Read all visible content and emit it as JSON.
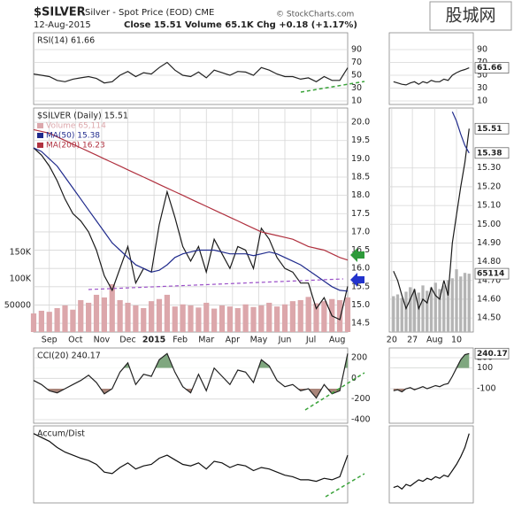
{
  "header": {
    "title": "$SILVER",
    "subtitle": "Silver - Spot Price (EOD)  CME",
    "date": "12-Aug-2015",
    "quote": "Close 15.51  Volume 65.1K  Chg +0.18 (+1.17%)",
    "source": "© StockCharts.com",
    "watermark": "股城网"
  },
  "chart_data": [
    {
      "type": "line",
      "title": "RSI(14) 61.66",
      "x": [
        -0.6,
        -0.3,
        0,
        0.3,
        0.6,
        0.9,
        1.2,
        1.5,
        1.8,
        2.1,
        2.4,
        2.7,
        3,
        3.3,
        3.6,
        3.9,
        4.2,
        4.5,
        4.8,
        5.1,
        5.4,
        5.7,
        6,
        6.3,
        6.6,
        6.9,
        7.2,
        7.5,
        7.8,
        8.1,
        8.4,
        8.7,
        9,
        9.3,
        9.6,
        9.9,
        10.2,
        10.5,
        10.8,
        11.1,
        11.4
      ],
      "xlim": [
        -0.6,
        11.4
      ],
      "series": [
        {
          "color": "#222222",
          "values": [
            52,
            50,
            48,
            42,
            40,
            44,
            46,
            48,
            45,
            38,
            40,
            50,
            56,
            48,
            54,
            52,
            62,
            70,
            58,
            50,
            48,
            55,
            46,
            58,
            54,
            50,
            56,
            55,
            50,
            62,
            58,
            52,
            48,
            48,
            44,
            46,
            40,
            48,
            42,
            42,
            61.66
          ]
        }
      ],
      "ylim": [
        4.5,
        116.2
      ],
      "yticks": [
        90,
        70,
        50,
        30,
        10
      ],
      "grid": true
    },
    {
      "type": "line",
      "title": "$SILVER (Daily) 15.51",
      "x": [
        -0.6,
        -0.3,
        0,
        0.3,
        0.6,
        0.9,
        1.2,
        1.5,
        1.8,
        2.1,
        2.4,
        2.7,
        3,
        3.3,
        3.6,
        3.9,
        4.2,
        4.5,
        4.8,
        5.1,
        5.4,
        5.7,
        6,
        6.3,
        6.6,
        6.9,
        7.2,
        7.5,
        7.8,
        8.1,
        8.4,
        8.7,
        9,
        9.3,
        9.6,
        9.9,
        10.2,
        10.5,
        10.8,
        11.1,
        11.4
      ],
      "xlim": [
        -0.6,
        11.4
      ],
      "xticks": [
        {
          "value": 0,
          "label": "Sep"
        },
        {
          "value": 1,
          "label": "Oct"
        },
        {
          "value": 2,
          "label": "Nov"
        },
        {
          "value": 3,
          "label": "Dec"
        },
        {
          "value": 4,
          "label": "2015"
        },
        {
          "value": 5,
          "label": "Feb"
        },
        {
          "value": 6,
          "label": "Mar"
        },
        {
          "value": 7,
          "label": "Apr"
        },
        {
          "value": 8,
          "label": "May"
        },
        {
          "value": 9,
          "label": "Jun"
        },
        {
          "value": 10,
          "label": "Jul"
        },
        {
          "value": 11,
          "label": "Aug"
        }
      ],
      "series": [
        {
          "type": "bar",
          "axis": "y2",
          "name": "Volume 65,114",
          "color": "#dca7ab",
          "values": [
            35000,
            40000,
            38000,
            45000,
            50000,
            42000,
            60000,
            55000,
            70000,
            65000,
            90000,
            60000,
            55000,
            50000,
            45000,
            58000,
            62000,
            70000,
            48000,
            52000,
            50000,
            46000,
            55000,
            44000,
            50000,
            48000,
            45000,
            52000,
            47000,
            50000,
            55000,
            48000,
            52000,
            58000,
            60000,
            66000,
            54000,
            58000,
            62000,
            60000,
            65114
          ]
        },
        {
          "color": "#1a1a1a",
          "values": [
            19.3,
            19.1,
            18.8,
            18.4,
            17.9,
            17.5,
            17.3,
            17.0,
            16.5,
            15.8,
            15.4,
            16.0,
            16.6,
            15.6,
            16.0,
            15.9,
            17.2,
            18.1,
            17.4,
            16.6,
            16.2,
            16.6,
            15.9,
            16.8,
            16.4,
            16.0,
            16.6,
            16.5,
            16.0,
            17.1,
            16.8,
            16.3,
            16.0,
            15.9,
            15.6,
            15.6,
            14.9,
            15.2,
            14.7,
            14.6,
            15.51
          ]
        },
        {
          "name": "MA(50) 15.38",
          "color": "#1f2a8c",
          "values": [
            19.3,
            19.2,
            19.0,
            18.8,
            18.5,
            18.2,
            17.9,
            17.6,
            17.3,
            17.0,
            16.7,
            16.5,
            16.3,
            16.1,
            16.0,
            15.9,
            15.95,
            16.1,
            16.3,
            16.4,
            16.45,
            16.5,
            16.5,
            16.5,
            16.45,
            16.4,
            16.4,
            16.4,
            16.35,
            16.4,
            16.45,
            16.4,
            16.3,
            16.2,
            16.1,
            15.95,
            15.8,
            15.65,
            15.5,
            15.4,
            15.38
          ]
        },
        {
          "name": "MA(200) 16.23",
          "color": "#b0313f",
          "values": [
            19.8,
            19.75,
            19.7,
            19.6,
            19.5,
            19.4,
            19.3,
            19.2,
            19.1,
            19.0,
            18.9,
            18.8,
            18.7,
            18.6,
            18.5,
            18.4,
            18.3,
            18.2,
            18.1,
            18.0,
            17.9,
            17.8,
            17.7,
            17.6,
            17.5,
            17.4,
            17.3,
            17.2,
            17.1,
            17.0,
            16.95,
            16.9,
            16.85,
            16.8,
            16.7,
            16.6,
            16.55,
            16.5,
            16.4,
            16.3,
            16.23
          ]
        }
      ],
      "ylim": [
        14.26,
        20.39
      ],
      "yticks": [
        {
          "value": 20,
          "label": "20.0"
        },
        19.5,
        {
          "value": 19,
          "label": "19.0"
        },
        18.5,
        {
          "value": 18,
          "label": "18.0"
        },
        17.5,
        {
          "value": 17,
          "label": "17.0"
        },
        16.5,
        {
          "value": 16,
          "label": "16.0"
        },
        15.5,
        {
          "value": 15,
          "label": "15.0"
        },
        14.5
      ],
      "y2lim": [
        0,
        421000
      ],
      "y2ticks": [
        {
          "value": 150000,
          "label": "150K"
        },
        {
          "value": 100000,
          "label": "100K"
        },
        50000
      ],
      "grid": true
    },
    {
      "type": "line",
      "title": "CCI(20) 240.17",
      "x": [
        -0.6,
        -0.3,
        0,
        0.3,
        0.6,
        0.9,
        1.2,
        1.5,
        1.8,
        2.1,
        2.4,
        2.7,
        3,
        3.3,
        3.6,
        3.9,
        4.2,
        4.5,
        4.8,
        5.1,
        5.4,
        5.7,
        6,
        6.3,
        6.6,
        6.9,
        7.2,
        7.5,
        7.8,
        8.1,
        8.4,
        8.7,
        9,
        9.3,
        9.6,
        9.9,
        10.2,
        10.5,
        10.8,
        11.1,
        11.4
      ],
      "xlim": [
        -0.6,
        11.4
      ],
      "series": [
        {
          "color": "#222222",
          "fill_above": {
            "level": 100,
            "color": "#7fa77f"
          },
          "fill_below": {
            "level": -100,
            "color": "#a9857a"
          },
          "values": [
            -20,
            -60,
            -120,
            -140,
            -100,
            -60,
            -20,
            30,
            -40,
            -150,
            -100,
            60,
            150,
            -60,
            40,
            20,
            180,
            240,
            60,
            -80,
            -140,
            40,
            -120,
            100,
            20,
            -60,
            80,
            60,
            -40,
            180,
            120,
            -20,
            -80,
            -60,
            -120,
            -100,
            -190,
            -60,
            -150,
            -120,
            240.17
          ]
        }
      ],
      "ylim": [
        -434,
        294
      ],
      "yticks": [
        200,
        0,
        -200,
        -400
      ],
      "grid": true
    },
    {
      "type": "line",
      "title": "Accum/Dist",
      "x": [
        -0.6,
        -0.3,
        0,
        0.3,
        0.6,
        0.9,
        1.2,
        1.5,
        1.8,
        2.1,
        2.4,
        2.7,
        3,
        3.3,
        3.6,
        3.9,
        4.2,
        4.5,
        4.8,
        5.1,
        5.4,
        5.7,
        6,
        6.3,
        6.6,
        6.9,
        7.2,
        7.5,
        7.8,
        8.1,
        8.4,
        8.7,
        9,
        9.3,
        9.6,
        9.9,
        10.2,
        10.5,
        10.8,
        11.1,
        11.4
      ],
      "xlim": [
        -0.6,
        11.4
      ],
      "series": [
        {
          "color": "#111111",
          "values": [
            90,
            85,
            80,
            72,
            66,
            62,
            58,
            55,
            50,
            40,
            38,
            46,
            52,
            44,
            48,
            50,
            58,
            62,
            56,
            50,
            48,
            52,
            44,
            54,
            52,
            46,
            50,
            48,
            42,
            46,
            44,
            40,
            36,
            34,
            30,
            30,
            28,
            32,
            30,
            34,
            62
          ]
        }
      ],
      "ylim": [
        0,
        100
      ]
    },
    {
      "type": "line",
      "x": [
        1,
        2,
        3,
        4,
        5,
        6,
        7,
        8,
        9,
        10,
        11,
        12,
        13,
        14,
        15,
        16,
        17,
        18,
        19
      ],
      "xlim": [
        0,
        20
      ],
      "series": [
        {
          "color": "#222222",
          "values": [
            40,
            38,
            36,
            35,
            38,
            40,
            36,
            40,
            38,
            42,
            40,
            40,
            44,
            42,
            50,
            54,
            57,
            59,
            61.66
          ],
          "value_labels": [
            null,
            null,
            null,
            null,
            null,
            null,
            null,
            null,
            null,
            null,
            null,
            null,
            null,
            null,
            null,
            null,
            null,
            null,
            "61.66"
          ]
        }
      ],
      "ylim": [
        4.5,
        116.2
      ],
      "yticks": [
        90,
        70,
        50,
        30,
        10
      ],
      "grid": true
    },
    {
      "type": "line",
      "x": [
        1,
        2,
        3,
        4,
        5,
        6,
        7,
        8,
        9,
        10,
        11,
        12,
        13,
        14,
        15,
        16,
        17,
        18,
        19
      ],
      "xlim": [
        0,
        20
      ],
      "xticks": [
        {
          "value": 0.6,
          "label": "20"
        },
        {
          "value": 5.5,
          "label": "27"
        },
        {
          "value": 10.8,
          "label": "Aug"
        },
        {
          "value": 16,
          "label": "10"
        }
      ],
      "series": [
        {
          "type": "bar",
          "axis": "y2",
          "color": "#b4b4b4",
          "values": [
            40000,
            42000,
            38000,
            45000,
            50000,
            48000,
            44000,
            52000,
            46000,
            50000,
            55000,
            48000,
            52000,
            58000,
            60000,
            70000,
            62000,
            66000,
            65114
          ],
          "value_labels": [
            null,
            null,
            null,
            null,
            null,
            null,
            null,
            null,
            null,
            null,
            null,
            null,
            null,
            null,
            null,
            null,
            null,
            null,
            "65114"
          ]
        },
        {
          "color": "#1a1a1a",
          "values": [
            14.75,
            14.7,
            14.62,
            14.55,
            14.6,
            14.65,
            14.55,
            14.6,
            14.58,
            14.66,
            14.62,
            14.6,
            14.7,
            14.62,
            14.9,
            15.05,
            15.2,
            15.33,
            15.51
          ],
          "value_labels": [
            null,
            null,
            null,
            null,
            null,
            null,
            null,
            null,
            null,
            null,
            null,
            null,
            null,
            null,
            null,
            null,
            null,
            null,
            "15.51"
          ]
        },
        {
          "color": "#1f2a8c",
          "values": [
            null,
            null,
            null,
            null,
            null,
            null,
            null,
            null,
            null,
            null,
            null,
            null,
            null,
            null,
            15.6,
            15.55,
            15.48,
            15.42,
            15.38
          ],
          "value_labels": [
            null,
            null,
            null,
            null,
            null,
            null,
            null,
            null,
            null,
            null,
            null,
            null,
            null,
            null,
            null,
            null,
            null,
            null,
            "15.38"
          ]
        }
      ],
      "ylim": [
        14.425,
        15.62
      ],
      "yticks": [
        {
          "value": 15.3,
          "label": "15.30"
        },
        {
          "value": 15.2,
          "label": "15.20"
        },
        {
          "value": 15.1,
          "label": "15.10"
        },
        {
          "value": 15,
          "label": "15.00"
        },
        {
          "value": 14.9,
          "label": "14.90"
        },
        {
          "value": 14.8,
          "label": "14.80"
        },
        {
          "value": 14.7,
          "label": "14.70"
        },
        {
          "value": 14.6,
          "label": "14.60"
        },
        {
          "value": 14.5,
          "label": "14.50"
        }
      ],
      "y2lim": [
        0,
        250000
      ],
      "grid": true
    },
    {
      "type": "line",
      "x": [
        1,
        2,
        3,
        4,
        5,
        6,
        7,
        8,
        9,
        10,
        11,
        12,
        13,
        14,
        15,
        16,
        17,
        18,
        19
      ],
      "xlim": [
        0,
        20
      ],
      "series": [
        {
          "color": "#222222",
          "fill_above": {
            "level": 100,
            "color": "#7fa77f"
          },
          "fill_below": {
            "level": -100,
            "color": "#a9857a"
          },
          "values": [
            -120,
            -110,
            -130,
            -100,
            -90,
            -110,
            -95,
            -80,
            -100,
            -85,
            -70,
            -80,
            -60,
            -50,
            20,
            100,
            180,
            230,
            240.17
          ],
          "value_labels": [
            null,
            null,
            null,
            null,
            null,
            null,
            null,
            null,
            null,
            null,
            null,
            null,
            null,
            null,
            null,
            null,
            null,
            null,
            "240.17"
          ]
        }
      ],
      "ylim": [
        -434,
        294
      ],
      "yticks": [
        200,
        100,
        -100
      ],
      "grid": true
    },
    {
      "type": "line",
      "x": [
        1,
        2,
        3,
        4,
        5,
        6,
        7,
        8,
        9,
        10,
        11,
        12,
        13,
        14,
        15,
        16,
        17,
        18,
        19
      ],
      "xlim": [
        0,
        20
      ],
      "series": [
        {
          "color": "#111111",
          "values": [
            20,
            22,
            18,
            24,
            22,
            26,
            30,
            28,
            32,
            30,
            34,
            32,
            36,
            34,
            42,
            50,
            60,
            72,
            90
          ]
        }
      ],
      "ylim": [
        0,
        100
      ]
    }
  ]
}
